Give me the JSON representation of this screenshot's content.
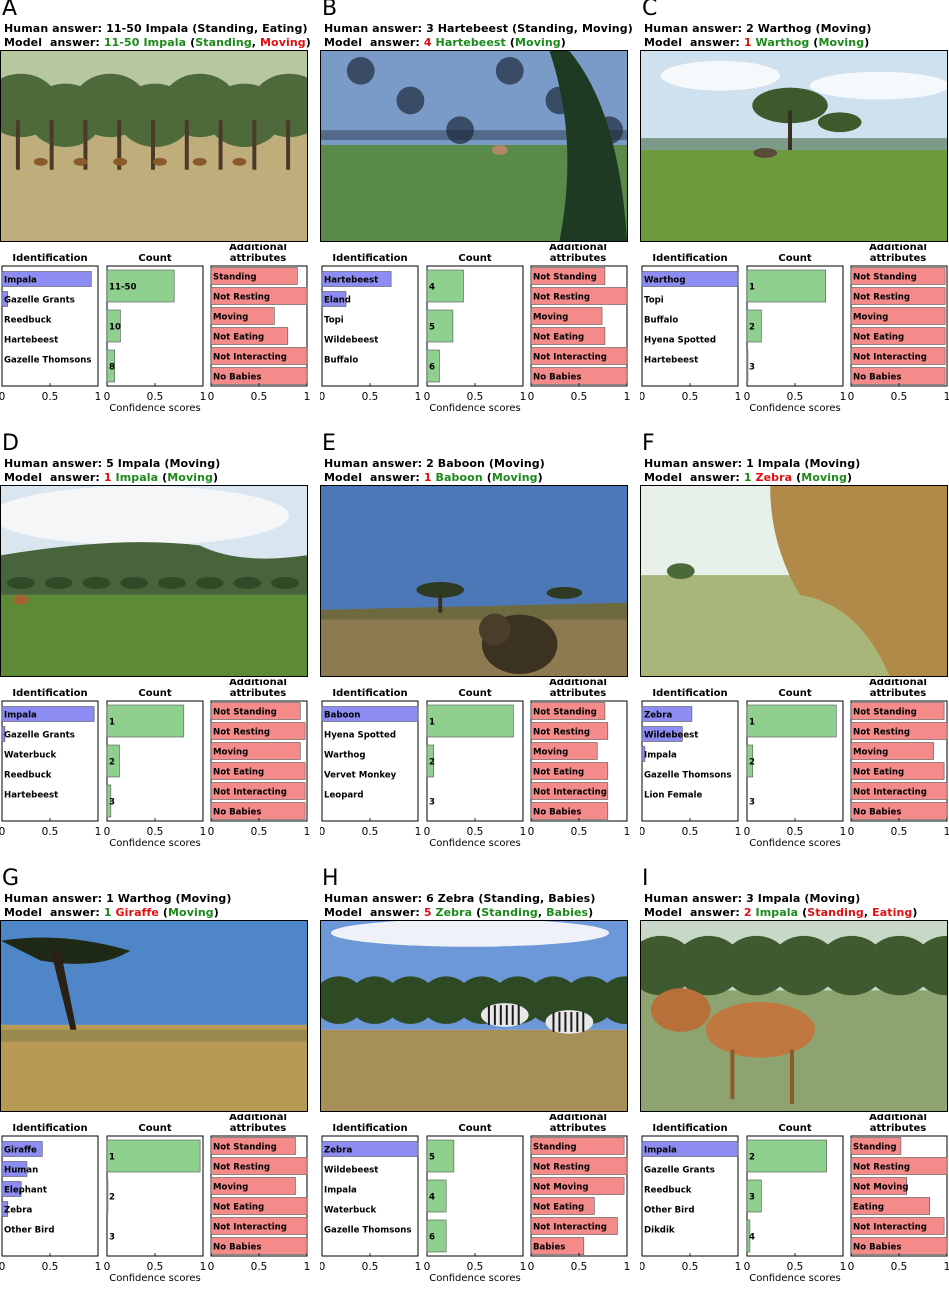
{
  "colors": {
    "identification": "#8c8cf2",
    "count": "#8fd08f",
    "attributes": "#f58a8a",
    "correct": "#1a8a1a",
    "wrong": "#e01010"
  },
  "common": {
    "col_titles": [
      "Identification",
      "Count",
      "Additional\nattributes"
    ],
    "xlabel": "Confidence scores",
    "ticks": [
      "0",
      "0.5",
      "1"
    ],
    "human_prefix": "Human answer: ",
    "model_prefix": "Model  answer: "
  },
  "panels": [
    {
      "letter": "A",
      "human": "11-50 Impala (Standing, Eating)",
      "model": [
        [
          "11-50 ",
          "g"
        ],
        [
          "Impala ",
          "g"
        ],
        [
          "(",
          ""
        ],
        [
          "Standing",
          "g"
        ],
        [
          ", ",
          ""
        ],
        [
          "Moving",
          "r"
        ],
        [
          ")",
          ""
        ]
      ],
      "scene": "savanna-trees",
      "identification": [
        [
          "Impala",
          0.93
        ],
        [
          "Gazelle Grants",
          0.06
        ],
        [
          "Reedbuck",
          0
        ],
        [
          "Hartebeest",
          0
        ],
        [
          "Gazelle Thomsons",
          0
        ]
      ],
      "count": [
        [
          "11-50",
          0.7
        ],
        [
          "10",
          0.14
        ],
        [
          "8",
          0.08
        ]
      ],
      "attributes": [
        [
          "Standing",
          0.9
        ],
        [
          "Not Resting",
          1.0
        ],
        [
          "Moving",
          0.66
        ],
        [
          "Not Eating",
          0.8
        ],
        [
          "Not Interacting",
          1.0
        ],
        [
          "No Babies",
          1.0
        ]
      ]
    },
    {
      "letter": "B",
      "human": "3 Hartebeest (Standing, Moving)",
      "model": [
        [
          "4 ",
          "r"
        ],
        [
          "Hartebeest ",
          "g"
        ],
        [
          "(",
          ""
        ],
        [
          "Moving",
          "g"
        ],
        [
          ")",
          ""
        ]
      ],
      "scene": "grass-closeup",
      "identification": [
        [
          "Hartebeest",
          0.72
        ],
        [
          "Eland",
          0.25
        ],
        [
          "Topi",
          0
        ],
        [
          "Wildebeest",
          0
        ],
        [
          "Buffalo",
          0
        ]
      ],
      "count": [
        [
          "4",
          0.38
        ],
        [
          "5",
          0.27
        ],
        [
          "6",
          0.13
        ]
      ],
      "attributes": [
        [
          "Not Standing",
          0.77
        ],
        [
          "Not Resting",
          1.0
        ],
        [
          "Moving",
          0.74
        ],
        [
          "Not Eating",
          0.77
        ],
        [
          "Not Interacting",
          1.0
        ],
        [
          "No Babies",
          1.0
        ]
      ]
    },
    {
      "letter": "C",
      "human": "2 Warthog (Moving)",
      "model": [
        [
          "1 ",
          "r"
        ],
        [
          "Warthog ",
          "g"
        ],
        [
          "(",
          ""
        ],
        [
          "Moving",
          "g"
        ],
        [
          ")",
          ""
        ]
      ],
      "scene": "plain-acacia",
      "identification": [
        [
          "Warthog",
          1.0
        ],
        [
          "Topi",
          0
        ],
        [
          "Buffalo",
          0
        ],
        [
          "Hyena Spotted",
          0
        ],
        [
          "Hartebeest",
          0
        ]
      ],
      "count": [
        [
          "1",
          0.82
        ],
        [
          "2",
          0.15
        ],
        [
          "3",
          0.01
        ]
      ],
      "attributes": [
        [
          "Not Standing",
          0.98
        ],
        [
          "Not Resting",
          0.98
        ],
        [
          "Moving",
          0.98
        ],
        [
          "Not Eating",
          0.98
        ],
        [
          "Not Interacting",
          0.98
        ],
        [
          "No Babies",
          0.98
        ]
      ]
    },
    {
      "letter": "D",
      "human": "5 Impala (Moving)",
      "model": [
        [
          "1 ",
          "r"
        ],
        [
          "Impala ",
          "g"
        ],
        [
          "(",
          ""
        ],
        [
          "Moving",
          "g"
        ],
        [
          ")",
          ""
        ]
      ],
      "scene": "hills-plain",
      "identification": [
        [
          "Impala",
          0.96
        ],
        [
          "Gazelle Grants",
          0.03
        ],
        [
          "Waterbuck",
          0
        ],
        [
          "Reedbuck",
          0
        ],
        [
          "Hartebeest",
          0
        ]
      ],
      "count": [
        [
          "1",
          0.8
        ],
        [
          "2",
          0.13
        ],
        [
          "3",
          0.04
        ]
      ],
      "attributes": [
        [
          "Not Standing",
          0.93
        ],
        [
          "Not Resting",
          0.98
        ],
        [
          "Moving",
          0.93
        ],
        [
          "Not Eating",
          0.98
        ],
        [
          "Not Interacting",
          0.98
        ],
        [
          "No Babies",
          0.98
        ]
      ]
    },
    {
      "letter": "E",
      "human": "2 Baboon (Moving)",
      "model": [
        [
          "1 ",
          "r"
        ],
        [
          "Baboon ",
          "g"
        ],
        [
          "(",
          ""
        ],
        [
          "Moving",
          "g"
        ],
        [
          ")",
          ""
        ]
      ],
      "scene": "blue-sky-baboon",
      "identification": [
        [
          "Baboon",
          1.0
        ],
        [
          "Hyena Spotted",
          0
        ],
        [
          "Warthog",
          0
        ],
        [
          "Vervet Monkey",
          0
        ],
        [
          "Leopard",
          0
        ]
      ],
      "count": [
        [
          "1",
          0.9
        ],
        [
          "2",
          0.07
        ],
        [
          "3",
          0
        ]
      ],
      "attributes": [
        [
          "Not Standing",
          0.77
        ],
        [
          "Not Resting",
          0.8
        ],
        [
          "Moving",
          0.69
        ],
        [
          "Not Eating",
          0.8
        ],
        [
          "Not Interacting",
          0.8
        ],
        [
          "No Babies",
          0.8
        ]
      ]
    },
    {
      "letter": "F",
      "human": "1 Impala (Moving)",
      "model": [
        [
          "1 ",
          "g"
        ],
        [
          "Zebra ",
          "r"
        ],
        [
          "(",
          ""
        ],
        [
          "Moving",
          "g"
        ],
        [
          ")",
          ""
        ]
      ],
      "scene": "closeup-animal",
      "identification": [
        [
          "Zebra",
          0.52
        ],
        [
          "Wildebeest",
          0.42
        ],
        [
          "Impala",
          0.03
        ],
        [
          "Gazelle Thomsons",
          0
        ],
        [
          "Lion Female",
          0
        ]
      ],
      "count": [
        [
          "1",
          0.93
        ],
        [
          "2",
          0.06
        ],
        [
          "3",
          0
        ]
      ],
      "attributes": [
        [
          "Not Standing",
          0.97
        ],
        [
          "Not Resting",
          1.0
        ],
        [
          "Moving",
          0.86
        ],
        [
          "Not Eating",
          0.97
        ],
        [
          "Not Interacting",
          1.0
        ],
        [
          "No Babies",
          1.0
        ]
      ]
    },
    {
      "letter": "G",
      "human": "1 Warthog (Moving)",
      "model": [
        [
          "1 ",
          "g"
        ],
        [
          "Giraffe ",
          "r"
        ],
        [
          "(",
          ""
        ],
        [
          "Moving",
          "g"
        ],
        [
          ")",
          ""
        ]
      ],
      "scene": "dry-grass-tree",
      "identification": [
        [
          "Giraffe",
          0.42
        ],
        [
          "Human",
          0.26
        ],
        [
          "Elephant",
          0.2
        ],
        [
          "Zebra",
          0.06
        ],
        [
          "Other Bird",
          0
        ]
      ],
      "count": [
        [
          "1",
          0.97
        ],
        [
          "2",
          0.01
        ],
        [
          "3",
          0
        ]
      ],
      "attributes": [
        [
          "Not Standing",
          0.88
        ],
        [
          "Not Resting",
          1.0
        ],
        [
          "Moving",
          0.88
        ],
        [
          "Not Eating",
          1.0
        ],
        [
          "Not Interacting",
          1.0
        ],
        [
          "No Babies",
          1.0
        ]
      ]
    },
    {
      "letter": "H",
      "human": "6 Zebra (Standing, Babies)",
      "model": [
        [
          "5 ",
          "r"
        ],
        [
          "Zebra ",
          "g"
        ],
        [
          "(",
          ""
        ],
        [
          "Standing",
          "g"
        ],
        [
          ", ",
          ""
        ],
        [
          "Babies",
          "g"
        ],
        [
          ")",
          ""
        ]
      ],
      "scene": "zebras",
      "identification": [
        [
          "Zebra",
          1.0
        ],
        [
          "Wildebeest",
          0
        ],
        [
          "Impala",
          0
        ],
        [
          "Waterbuck",
          0
        ],
        [
          "Gazelle Thomsons",
          0
        ]
      ],
      "count": [
        [
          "5",
          0.28
        ],
        [
          "4",
          0.2
        ],
        [
          "6",
          0.2
        ]
      ],
      "attributes": [
        [
          "Standing",
          0.97
        ],
        [
          "Not Resting",
          1.0
        ],
        [
          "Not Moving",
          0.97
        ],
        [
          "Not Eating",
          0.66
        ],
        [
          "Not Interacting",
          0.9
        ],
        [
          "Babies",
          0.55
        ]
      ]
    },
    {
      "letter": "I",
      "human": "3 Impala (Moving)",
      "model": [
        [
          "2 ",
          "r"
        ],
        [
          "Impala ",
          "g"
        ],
        [
          "(",
          ""
        ],
        [
          "Standing",
          "r"
        ],
        [
          ", ",
          ""
        ],
        [
          "Eating",
          "r"
        ],
        [
          ")",
          ""
        ]
      ],
      "scene": "impala-closeup",
      "identification": [
        [
          "Impala",
          1.0
        ],
        [
          "Gazelle Grants",
          0
        ],
        [
          "Reedbuck",
          0
        ],
        [
          "Other Bird",
          0
        ],
        [
          "Dikdik",
          0
        ]
      ],
      "count": [
        [
          "2",
          0.83
        ],
        [
          "3",
          0.15
        ],
        [
          "4",
          0.03
        ]
      ],
      "attributes": [
        [
          "Standing",
          0.52
        ],
        [
          "Not Resting",
          1.0
        ],
        [
          "Not Moving",
          0.58
        ],
        [
          "Eating",
          0.82
        ],
        [
          "Not Interacting",
          0.97
        ],
        [
          "No Babies",
          1.0
        ]
      ]
    }
  ],
  "chart_data": {
    "type": "bar",
    "note": "Nine panels (A-I), each with three horizontal bar groups of confidence scores on 0-1 axes: Identification, Count, Additional attributes.",
    "xlim": [
      0,
      1
    ],
    "xlabel": "Confidence scores"
  }
}
